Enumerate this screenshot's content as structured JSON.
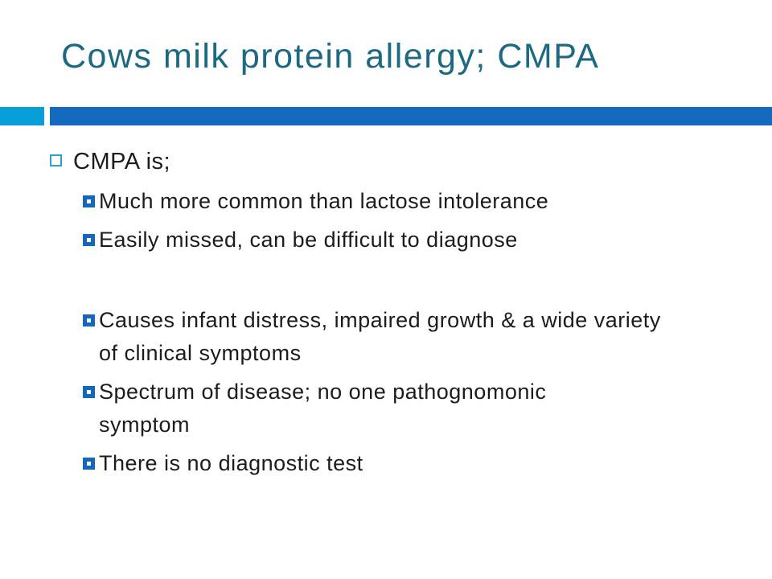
{
  "slide": {
    "title": "Cows milk protein allergy; CMPA",
    "colors": {
      "background": "#ffffff",
      "title": "#1b6a81",
      "bar_main": "#136abf",
      "bar_accent": "#069fd9",
      "bullet_level1_border": "#2ba0d2",
      "bullet_level2_fill": "#1467bd",
      "body_text": "#1c1c1c"
    },
    "bullets": {
      "level1": {
        "label": "CMPA is;"
      },
      "level2": [
        {
          "lines": [
            "Much more common than lactose intolerance"
          ]
        },
        {
          "lines": [
            "Easily missed, can be difficult to diagnose"
          ]
        },
        {
          "spacer": true
        },
        {
          "lines": [
            "Causes infant distress, impaired growth & a wide variety",
            "of clinical symptoms"
          ]
        },
        {
          "lines": [
            "Spectrum of disease; no one pathognomonic",
            "symptom"
          ]
        },
        {
          "lines": [
            "There is no diagnostic test"
          ]
        }
      ]
    }
  }
}
